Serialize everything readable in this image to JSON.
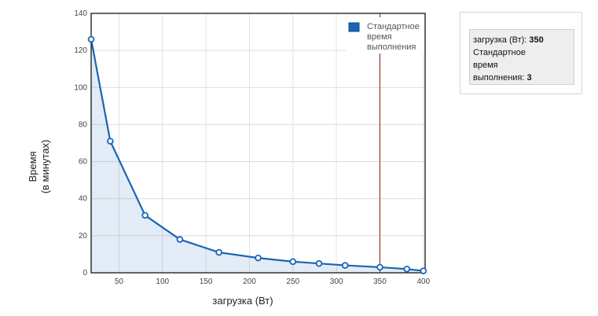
{
  "chart_data": {
    "type": "line",
    "xlabel": "загрузка (Вт)",
    "ylabel": "Время",
    "ylabel_sub": "(в минутах)",
    "xlim": [
      18,
      402
    ],
    "ylim": [
      0,
      140
    ],
    "x_ticks": [
      50,
      100,
      150,
      200,
      250,
      300,
      350,
      400
    ],
    "y_ticks": [
      0,
      20,
      40,
      60,
      80,
      100,
      120,
      140
    ],
    "grid": true,
    "legend_position": "top-right",
    "series": [
      {
        "name": "Стандартное время выполнения",
        "color": "#1a65b5",
        "x": [
          18,
          40,
          80,
          120,
          165,
          210,
          250,
          280,
          310,
          350,
          381,
          400
        ],
        "y": [
          126,
          71,
          31,
          18,
          11,
          8,
          6,
          5,
          4,
          3,
          2,
          1
        ]
      }
    ],
    "highlight_x": 350,
    "highlight_color": "#8b1a1a"
  },
  "legend": {
    "line1": "Стандартное",
    "line2": "время",
    "line3": "выполнения"
  },
  "tooltip": {
    "x_label": "загрузка (Вт): ",
    "x_value": "350",
    "series_label": "Стандартное\nвремя\nвыполнения: ",
    "series_value": "3"
  }
}
